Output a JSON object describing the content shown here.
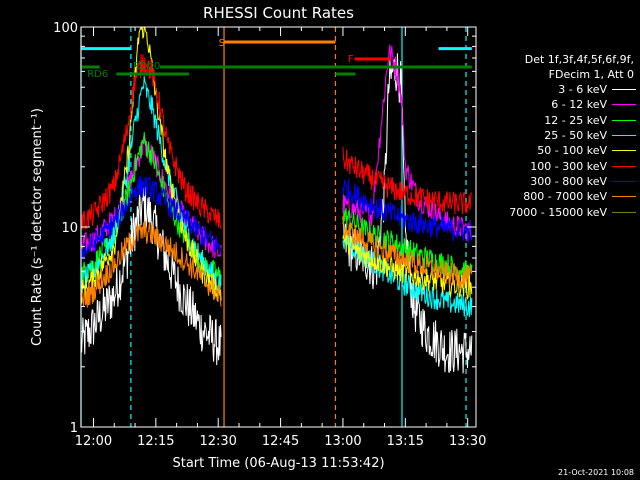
{
  "chart_data": {
    "type": "line",
    "title": "RHESSI Count Rates",
    "xlabel": "Start Time (06-Aug-13 11:53:42)",
    "ylabel": "Count Rate (s⁻¹ detector segment⁻¹)",
    "yscale": "log",
    "ylim": [
      1,
      100
    ],
    "y_ticks": [
      "1",
      "10",
      "100"
    ],
    "xlim_minutes": [
      -3,
      92
    ],
    "x_ticks": [
      {
        "label": "12:00",
        "minute": 0
      },
      {
        "label": "12:15",
        "minute": 15
      },
      {
        "label": "12:30",
        "minute": 30
      },
      {
        "label": "12:45",
        "minute": 45
      },
      {
        "label": "13:00",
        "minute": 60
      },
      {
        "label": "13:15",
        "minute": 75
      },
      {
        "label": "13:30",
        "minute": 90
      }
    ],
    "series": [
      {
        "name": "3 - 6 keV",
        "color": "#ffffff",
        "pts": [
          [
            -3,
            2.6
          ],
          [
            0,
            3.2
          ],
          [
            5,
            4.6
          ],
          [
            8,
            7
          ],
          [
            10,
            10
          ],
          [
            12,
            13
          ],
          [
            14,
            11
          ],
          [
            18,
            6.5
          ],
          [
            22,
            4.3
          ],
          [
            26,
            3.1
          ],
          [
            30,
            2.6
          ],
          [
            30.7,
            2.5
          ],
          [
            30.7,
            null
          ],
          [
            60,
            8.6
          ],
          [
            62,
            7.8
          ],
          [
            66,
            6.8
          ],
          [
            68,
            6
          ],
          [
            70,
            15
          ],
          [
            71,
            50
          ],
          [
            72,
            60
          ],
          [
            73,
            62
          ],
          [
            74,
            50
          ],
          [
            75,
            9
          ],
          [
            77,
            4
          ],
          [
            80,
            3
          ],
          [
            85,
            2.4
          ],
          [
            91,
            2.4
          ]
        ]
      },
      {
        "name": "6 - 12 keV",
        "color": "#ff00ff",
        "pts": [
          [
            -3,
            8
          ],
          [
            0,
            8.6
          ],
          [
            5,
            11
          ],
          [
            8,
            15
          ],
          [
            10,
            20
          ],
          [
            12,
            26
          ],
          [
            14,
            23
          ],
          [
            18,
            15
          ],
          [
            22,
            11
          ],
          [
            26,
            9
          ],
          [
            30,
            7.5
          ],
          [
            30.7,
            7.4
          ],
          [
            30.7,
            null
          ],
          [
            60,
            13
          ],
          [
            64,
            12
          ],
          [
            67,
            11.5
          ],
          [
            69,
            30
          ],
          [
            71,
            75
          ],
          [
            72,
            70
          ],
          [
            73,
            60
          ],
          [
            74,
            45
          ],
          [
            75,
            20
          ],
          [
            78,
            14
          ],
          [
            85,
            10.5
          ],
          [
            91,
            9.5
          ]
        ]
      },
      {
        "name": "12 - 25 keV",
        "color": "#00ff00",
        "pts": [
          [
            -3,
            5.8
          ],
          [
            0,
            6.5
          ],
          [
            5,
            9
          ],
          [
            8,
            14
          ],
          [
            10,
            20
          ],
          [
            12,
            27
          ],
          [
            14,
            23
          ],
          [
            18,
            13
          ],
          [
            22,
            9
          ],
          [
            26,
            6.6
          ],
          [
            30,
            5.7
          ],
          [
            30.7,
            5.6
          ],
          [
            30.7,
            null
          ],
          [
            60,
            11.5
          ],
          [
            64,
            10
          ],
          [
            68,
            9
          ],
          [
            72,
            8.4
          ],
          [
            76,
            7.6
          ],
          [
            80,
            7
          ],
          [
            85,
            6.5
          ],
          [
            91,
            5.8
          ]
        ]
      },
      {
        "name": "25 - 50 keV",
        "color": "#00ffff",
        "pts": [
          [
            -3,
            5.3
          ],
          [
            0,
            6
          ],
          [
            5,
            9
          ],
          [
            8,
            18
          ],
          [
            10,
            33
          ],
          [
            12,
            52
          ],
          [
            14,
            40
          ],
          [
            18,
            18
          ],
          [
            22,
            10
          ],
          [
            26,
            6.8
          ],
          [
            30,
            5.3
          ],
          [
            30.7,
            5.2
          ],
          [
            30.7,
            null
          ],
          [
            60,
            9
          ],
          [
            64,
            7.5
          ],
          [
            68,
            6.5
          ],
          [
            72,
            5.6
          ],
          [
            76,
            5
          ],
          [
            80,
            4.6
          ],
          [
            85,
            4.2
          ],
          [
            91,
            4
          ]
        ]
      },
      {
        "name": "50 - 100 keV",
        "color": "#ffff00",
        "pts": [
          [
            -3,
            4.7
          ],
          [
            0,
            5.5
          ],
          [
            5,
            8
          ],
          [
            8,
            20
          ],
          [
            10,
            55
          ],
          [
            11,
            95
          ],
          [
            12,
            100
          ],
          [
            13,
            90
          ],
          [
            15,
            45
          ],
          [
            18,
            18
          ],
          [
            22,
            9
          ],
          [
            26,
            6
          ],
          [
            30,
            4.8
          ],
          [
            30.7,
            4.7
          ],
          [
            30.7,
            null
          ],
          [
            60,
            8.8
          ],
          [
            64,
            7.4
          ],
          [
            68,
            6.8
          ],
          [
            72,
            6.2
          ],
          [
            76,
            5.8
          ],
          [
            80,
            5.5
          ],
          [
            85,
            5.2
          ],
          [
            91,
            5
          ]
        ]
      },
      {
        "name": "100 - 300 keV",
        "color": "#ff0000",
        "pts": [
          [
            -3,
            10.5
          ],
          [
            0,
            11.5
          ],
          [
            5,
            16
          ],
          [
            8,
            30
          ],
          [
            10,
            55
          ],
          [
            12,
            68
          ],
          [
            14,
            60
          ],
          [
            16,
            40
          ],
          [
            18,
            25
          ],
          [
            22,
            15.5
          ],
          [
            26,
            12.5
          ],
          [
            30,
            10.8
          ],
          [
            30.7,
            10.7
          ],
          [
            30.7,
            null
          ],
          [
            60,
            22
          ],
          [
            64,
            19
          ],
          [
            68,
            17
          ],
          [
            72,
            15.5
          ],
          [
            76,
            14.5
          ],
          [
            80,
            13.8
          ],
          [
            85,
            13.2
          ],
          [
            91,
            13
          ]
        ]
      },
      {
        "name": "300 - 800 keV",
        "color": "#0000ff",
        "pts": [
          [
            -3,
            7.5
          ],
          [
            0,
            8.2
          ],
          [
            5,
            10.5
          ],
          [
            8,
            13
          ],
          [
            10,
            15.5
          ],
          [
            12,
            16
          ],
          [
            14,
            15.5
          ],
          [
            18,
            13
          ],
          [
            22,
            11
          ],
          [
            26,
            9.2
          ],
          [
            30,
            8
          ],
          [
            30.7,
            7.9
          ],
          [
            30.7,
            null
          ],
          [
            60,
            16
          ],
          [
            64,
            14
          ],
          [
            68,
            12.5
          ],
          [
            72,
            11.5
          ],
          [
            76,
            10.7
          ],
          [
            80,
            10.2
          ],
          [
            85,
            9.8
          ],
          [
            91,
            9.5
          ]
        ]
      },
      {
        "name": "800 - 7000 keV",
        "color": "#ff8000",
        "pts": [
          [
            -3,
            4.2
          ],
          [
            0,
            4.8
          ],
          [
            5,
            6.5
          ],
          [
            8,
            8
          ],
          [
            10,
            9
          ],
          [
            12,
            9.5
          ],
          [
            14,
            9.2
          ],
          [
            18,
            8
          ],
          [
            22,
            6.8
          ],
          [
            26,
            5.6
          ],
          [
            30,
            4.6
          ],
          [
            30.7,
            4.5
          ],
          [
            30.7,
            null
          ],
          [
            60,
            10
          ],
          [
            64,
            8.8
          ],
          [
            68,
            8
          ],
          [
            72,
            7.3
          ],
          [
            76,
            6.7
          ],
          [
            80,
            6.3
          ],
          [
            85,
            5.8
          ],
          [
            91,
            5.6
          ]
        ]
      },
      {
        "name": "7000 - 15000 keV",
        "color": "#808000",
        "pts": []
      }
    ],
    "markers": {
      "attenuator_cyan": {
        "color": "#00ffff",
        "segments": [
          [
            -3,
            9
          ],
          [
            83,
            91
          ]
        ],
        "y": 78
      },
      "rd00_label": "RD00",
      "rd6_label": "RD6",
      "s_label": "S",
      "f_label": "F",
      "green_color": "#008000",
      "orange_color": "#ff8000",
      "red_color": "#ff0000"
    },
    "vertical_lines": [
      {
        "minute": -3,
        "color": "#00ffff",
        "style": "solid"
      },
      {
        "minute": 9,
        "color": "#00ffff",
        "style": "dashed"
      },
      {
        "minute": 31.4,
        "color": "#ff8000",
        "style": "solid"
      },
      {
        "minute": 58.2,
        "color": "#ff8000",
        "style": "dashed"
      },
      {
        "minute": 74.2,
        "color": "#00ffff",
        "style": "solid"
      },
      {
        "minute": 89.6,
        "color": "#00ffff",
        "style": "dashed"
      }
    ]
  },
  "legend": {
    "header_line1": "Det 1f,3f,4f,5f,6f,9f,",
    "header_line2": "FDecim 1, Att 0"
  },
  "footer": {
    "timestamp": "21-Oct-2021 10:08"
  }
}
